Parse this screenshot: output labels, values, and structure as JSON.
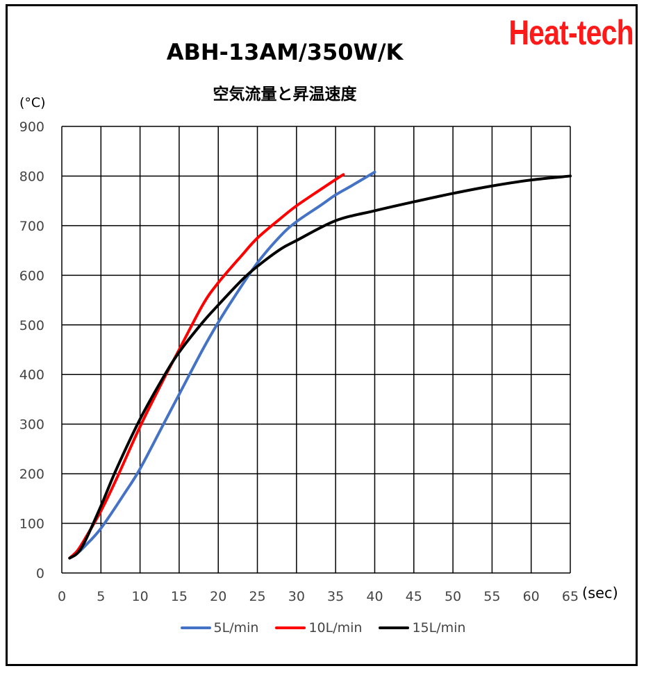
{
  "brand": "Heat-tech",
  "chart_data": {
    "type": "line",
    "title": "ABH-13AM/350W/K",
    "subtitle": "空気流量と昇温速度",
    "ylabel": "(°C)",
    "xlabel": "(sec)",
    "xlim": [
      0,
      65
    ],
    "ylim": [
      0,
      900
    ],
    "xticks": [
      0,
      5,
      10,
      15,
      20,
      25,
      30,
      35,
      40,
      45,
      50,
      55,
      60,
      65
    ],
    "yticks": [
      0,
      100,
      200,
      300,
      400,
      500,
      600,
      700,
      800,
      900
    ],
    "grid": true,
    "legend": "bottom",
    "series": [
      {
        "name": "5L/min",
        "color": "#4472c4",
        "x": [
          1,
          2,
          3,
          5,
          8,
          10,
          13,
          15,
          18,
          20,
          22,
          25,
          28,
          30,
          33,
          35,
          37,
          40
        ],
        "y": [
          30,
          40,
          55,
          90,
          160,
          210,
          300,
          360,
          450,
          505,
          555,
          625,
          680,
          708,
          740,
          762,
          780,
          808
        ]
      },
      {
        "name": "10L/min",
        "color": "#ff0000",
        "x": [
          1,
          2,
          3,
          5,
          7,
          10,
          13,
          15,
          18,
          20,
          23,
          25,
          28,
          30,
          33,
          35,
          36
        ],
        "y": [
          30,
          45,
          70,
          125,
          190,
          295,
          390,
          450,
          540,
          585,
          640,
          675,
          715,
          740,
          772,
          793,
          803
        ]
      },
      {
        "name": "15L/min",
        "color": "#000000",
        "x": [
          1,
          2,
          3,
          5,
          7,
          10,
          13,
          15,
          18,
          20,
          23,
          25,
          28,
          30,
          35,
          40,
          45,
          50,
          55,
          60,
          65
        ],
        "y": [
          30,
          40,
          65,
          135,
          210,
          310,
          395,
          445,
          505,
          540,
          590,
          618,
          653,
          670,
          710,
          730,
          748,
          765,
          780,
          792,
          800
        ]
      }
    ]
  }
}
